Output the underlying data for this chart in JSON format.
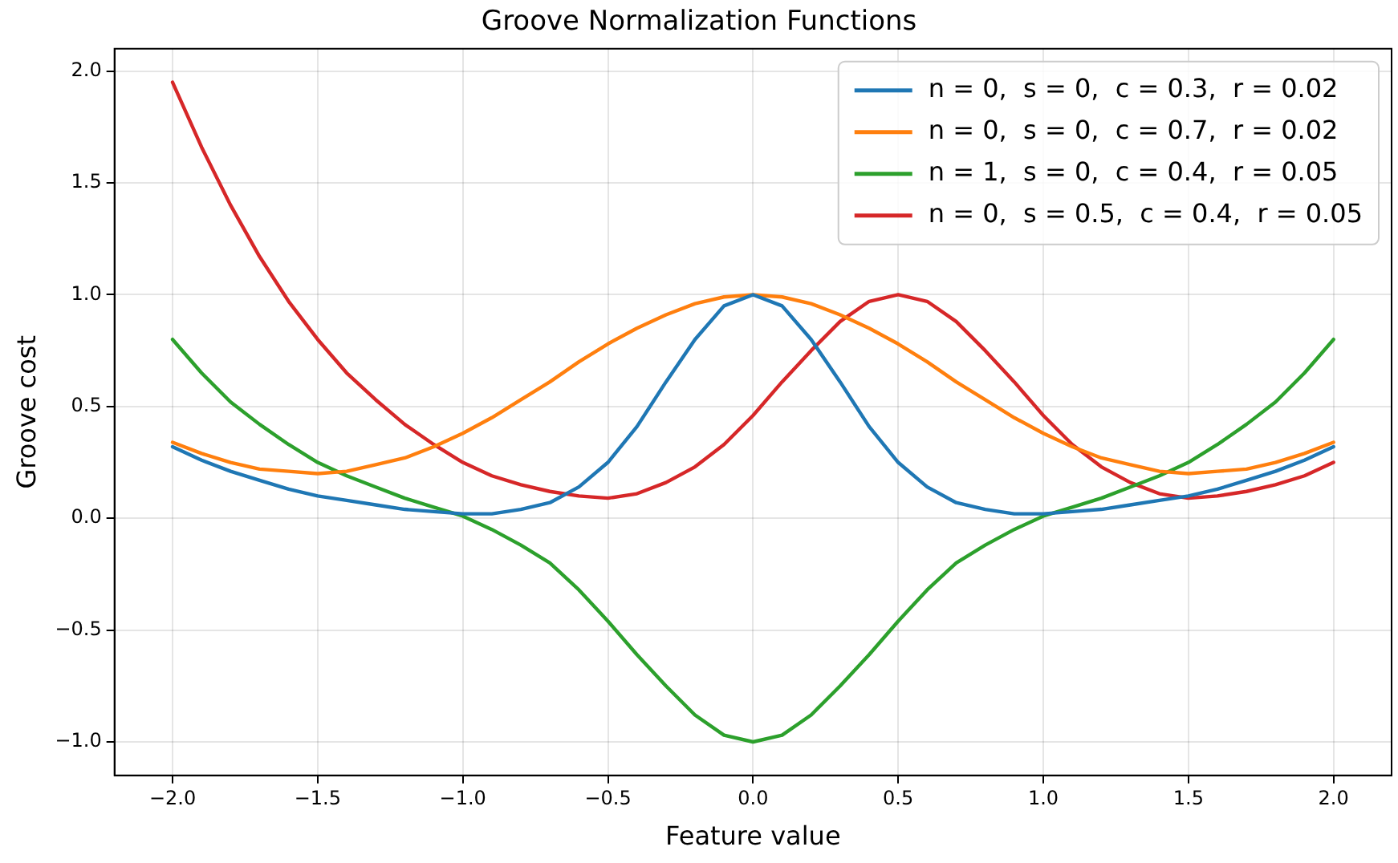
{
  "chart_data": {
    "type": "line",
    "title": "Groove Normalization Functions",
    "xlabel": "Feature value",
    "ylabel": "Groove cost",
    "x": [
      -2,
      -1.9,
      -1.8,
      -1.7,
      -1.6,
      -1.5,
      -1.4,
      -1.3,
      -1.2,
      -1.1,
      -1,
      -0.9,
      -0.8,
      -0.7,
      -0.6,
      -0.5,
      -0.4,
      -0.3,
      -0.2,
      -0.1,
      0,
      0.1,
      0.2,
      0.3,
      0.4,
      0.5,
      0.6,
      0.7,
      0.8,
      0.9,
      1,
      1.1,
      1.2,
      1.3,
      1.4,
      1.5,
      1.6,
      1.7,
      1.8,
      1.9,
      2
    ],
    "series": [
      {
        "name": "n = 0,  s = 0,  c = 0.3,  r = 0.02",
        "color": "#1f77b4",
        "values": [
          0.32,
          0.26,
          0.21,
          0.17,
          0.13,
          0.1,
          0.08,
          0.06,
          0.04,
          0.03,
          0.02,
          0.02,
          0.04,
          0.07,
          0.14,
          0.25,
          0.41,
          0.61,
          0.8,
          0.95,
          1,
          0.95,
          0.8,
          0.61,
          0.41,
          0.25,
          0.14,
          0.07,
          0.04,
          0.02,
          0.02,
          0.03,
          0.04,
          0.06,
          0.08,
          0.1,
          0.13,
          0.17,
          0.21,
          0.26,
          0.32
        ]
      },
      {
        "name": "n = 0,  s = 0,  c = 0.7,  r = 0.02",
        "color": "#ff7f0e",
        "values": [
          0.34,
          0.29,
          0.25,
          0.22,
          0.21,
          0.2,
          0.21,
          0.24,
          0.27,
          0.32,
          0.38,
          0.45,
          0.53,
          0.61,
          0.7,
          0.78,
          0.85,
          0.91,
          0.96,
          0.99,
          1,
          0.99,
          0.96,
          0.91,
          0.85,
          0.78,
          0.7,
          0.61,
          0.53,
          0.45,
          0.38,
          0.32,
          0.27,
          0.24,
          0.21,
          0.2,
          0.21,
          0.22,
          0.25,
          0.29,
          0.34
        ]
      },
      {
        "name": "n = 1,  s = 0,  c = 0.4,  r = 0.05",
        "color": "#2ca02c",
        "values": [
          0.8,
          0.65,
          0.52,
          0.42,
          0.33,
          0.25,
          0.19,
          0.14,
          0.09,
          0.05,
          0.01,
          -0.05,
          -0.12,
          -0.2,
          -0.32,
          -0.46,
          -0.61,
          -0.75,
          -0.88,
          -0.97,
          -1,
          -0.97,
          -0.88,
          -0.75,
          -0.61,
          -0.46,
          -0.32,
          -0.2,
          -0.12,
          -0.05,
          0.01,
          0.05,
          0.09,
          0.14,
          0.19,
          0.25,
          0.33,
          0.42,
          0.52,
          0.65,
          0.8
        ]
      },
      {
        "name": "n = 0,  s = 0.5,  c = 0.4,  r = 0.05",
        "color": "#d62728",
        "values": [
          1.95,
          1.66,
          1.4,
          1.17,
          0.97,
          0.8,
          0.65,
          0.53,
          0.42,
          0.33,
          0.25,
          0.19,
          0.15,
          0.12,
          0.1,
          0.09,
          0.11,
          0.16,
          0.23,
          0.33,
          0.46,
          0.61,
          0.75,
          0.88,
          0.97,
          1,
          0.97,
          0.88,
          0.75,
          0.61,
          0.46,
          0.33,
          0.23,
          0.16,
          0.11,
          0.09,
          0.1,
          0.12,
          0.15,
          0.19,
          0.25
        ]
      }
    ],
    "xlim": [
      -2.2,
      2.2
    ],
    "ylim": [
      -1.15,
      2.1
    ],
    "xticks": [
      {
        "value": -2,
        "label": "−2.0"
      },
      {
        "value": -1.5,
        "label": "−1.5"
      },
      {
        "value": -1,
        "label": "−1.0"
      },
      {
        "value": -0.5,
        "label": "−0.5"
      },
      {
        "value": 0,
        "label": "0.0"
      },
      {
        "value": 0.5,
        "label": "0.5"
      },
      {
        "value": 1,
        "label": "1.0"
      },
      {
        "value": 1.5,
        "label": "1.5"
      },
      {
        "value": 2,
        "label": "2.0"
      }
    ],
    "yticks": [
      {
        "value": -1,
        "label": "−1.0"
      },
      {
        "value": -0.5,
        "label": "−0.5"
      },
      {
        "value": 0,
        "label": "0.0"
      },
      {
        "value": 0.5,
        "label": "0.5"
      },
      {
        "value": 1,
        "label": "1.0"
      },
      {
        "value": 1.5,
        "label": "1.5"
      },
      {
        "value": 2,
        "label": "2.0"
      }
    ],
    "grid": true,
    "legend": "top right",
    "marker": "none",
    "line_style": "solid"
  }
}
